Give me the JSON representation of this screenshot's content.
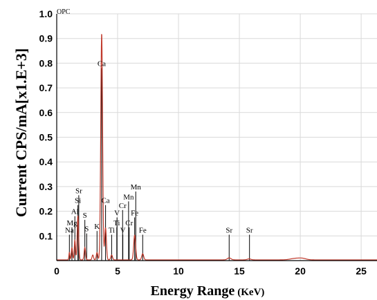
{
  "chart_data": {
    "type": "line",
    "title": "OPC",
    "xlabel": "Energy Range",
    "xlabel_unit": "(KeV)",
    "ylabel": "Current CPS/mA[x1.E+3]",
    "xlim": [
      0,
      26.3
    ],
    "ylim": [
      0,
      1.0
    ],
    "x_ticks": [
      0,
      5,
      10,
      15,
      20,
      25
    ],
    "y_ticks": [
      0.1,
      0.2,
      0.3,
      0.4,
      0.5,
      0.6,
      0.7,
      0.8,
      0.9,
      1.0
    ],
    "y_tick_labels": [
      "0.1",
      "0.2",
      "0.3",
      "0.4",
      "0.5",
      "0.6",
      "0.7",
      "0.8",
      "0.9",
      "1.0"
    ],
    "grid": true,
    "series": [
      {
        "color": "#c0392b",
        "peaks": [
          {
            "x": 1.04,
            "y": 0.03,
            "w": 0.04
          },
          {
            "x": 1.25,
            "y": 0.05,
            "w": 0.05
          },
          {
            "x": 1.49,
            "y": 0.08,
            "w": 0.05
          },
          {
            "x": 1.74,
            "y": 0.18,
            "w": 0.06
          },
          {
            "x": 2.31,
            "y": 0.05,
            "w": 0.06
          },
          {
            "x": 2.96,
            "y": 0.02,
            "w": 0.06
          },
          {
            "x": 3.31,
            "y": 0.03,
            "w": 0.06
          },
          {
            "x": 3.69,
            "y": 0.92,
            "w": 0.075
          },
          {
            "x": 4.01,
            "y": 0.13,
            "w": 0.07
          },
          {
            "x": 4.51,
            "y": 0.02,
            "w": 0.07
          },
          {
            "x": 6.4,
            "y": 0.1,
            "w": 0.08
          },
          {
            "x": 7.06,
            "y": 0.025,
            "w": 0.08
          },
          {
            "x": 14.16,
            "y": 0.008,
            "w": 0.15
          },
          {
            "x": 15.8,
            "y": 0.004,
            "w": 0.15
          },
          {
            "x": 19.6,
            "y": 0.006,
            "w": 0.4
          },
          {
            "x": 20.2,
            "y": 0.005,
            "w": 0.3
          }
        ]
      }
    ],
    "lines": [
      {
        "label": "Na",
        "x": 1.04,
        "y": 0.105
      },
      {
        "label": "Mg",
        "x": 1.25,
        "y": 0.135
      },
      {
        "label": "Al",
        "x": 1.49,
        "y": 0.18
      },
      {
        "label": "Si",
        "x": 1.74,
        "y": 0.225
      },
      {
        "label": "Sr",
        "x": 1.81,
        "y": 0.265
      },
      {
        "label": "S",
        "x": 2.31,
        "y": 0.165
      },
      {
        "label": "S",
        "x": 2.46,
        "y": 0.11
      },
      {
        "label": "K",
        "x": 3.31,
        "y": 0.12
      },
      {
        "label": "Ca",
        "x": 3.69,
        "y": 0.78
      },
      {
        "label": "Ca",
        "x": 4.01,
        "y": 0.225
      },
      {
        "label": "Ti",
        "x": 4.51,
        "y": 0.105
      },
      {
        "label": "Ti",
        "x": 4.93,
        "y": 0.135
      },
      {
        "label": "V",
        "x": 4.95,
        "y": 0.175
      },
      {
        "label": "V",
        "x": 5.43,
        "y": 0.105
      },
      {
        "label": "Cr",
        "x": 5.41,
        "y": 0.205
      },
      {
        "label": "Cr",
        "x": 5.95,
        "y": 0.135
      },
      {
        "label": "Mn",
        "x": 5.9,
        "y": 0.24
      },
      {
        "label": "Mn",
        "x": 6.49,
        "y": 0.28
      },
      {
        "label": "Fe",
        "x": 6.4,
        "y": 0.175
      },
      {
        "label": "Fe",
        "x": 7.06,
        "y": 0.105
      },
      {
        "label": "Sr",
        "x": 14.16,
        "y": 0.105
      },
      {
        "label": "Sr",
        "x": 15.83,
        "y": 0.105
      }
    ]
  }
}
